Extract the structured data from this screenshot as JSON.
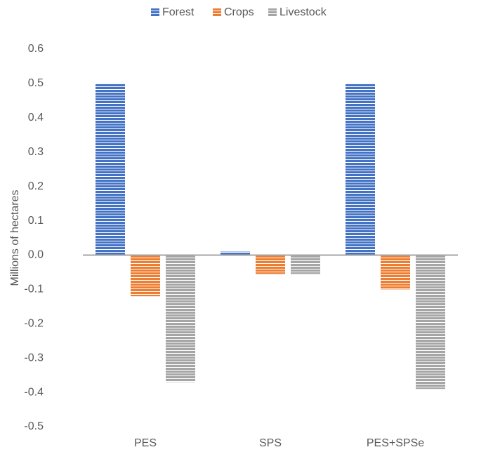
{
  "chart_data": {
    "type": "bar",
    "y_label": "Millions of hectares",
    "categories": [
      "PES",
      "SPS",
      "PES+SPSe"
    ],
    "series": [
      {
        "name": "Forest",
        "color": "#4472c4",
        "values": [
          0.5,
          0.01,
          0.5
        ]
      },
      {
        "name": "Crops",
        "color": "#ed7d31",
        "values": [
          -0.12,
          -0.055,
          -0.1
        ]
      },
      {
        "name": "Livestock",
        "color": "#a5a5a5",
        "values": [
          -0.37,
          -0.055,
          -0.39
        ]
      }
    ],
    "ylim": [
      -0.5,
      0.6
    ],
    "yticks": [
      -0.5,
      -0.4,
      -0.3,
      -0.2,
      -0.1,
      {
        "value": 0,
        "label": "0.0"
      },
      0.1,
      0.2,
      0.3,
      0.4,
      0.5,
      0.6
    ],
    "grid": false,
    "legend": "top"
  }
}
